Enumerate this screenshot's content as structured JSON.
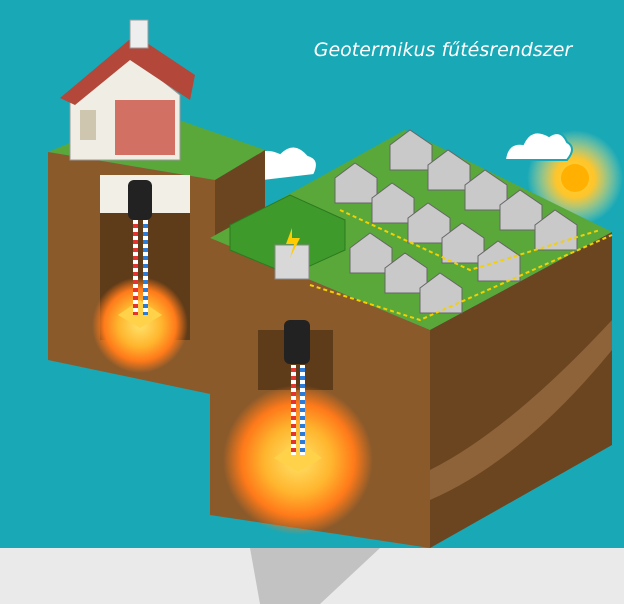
{
  "title": "Geotermikus fűtésrendszer"
}
